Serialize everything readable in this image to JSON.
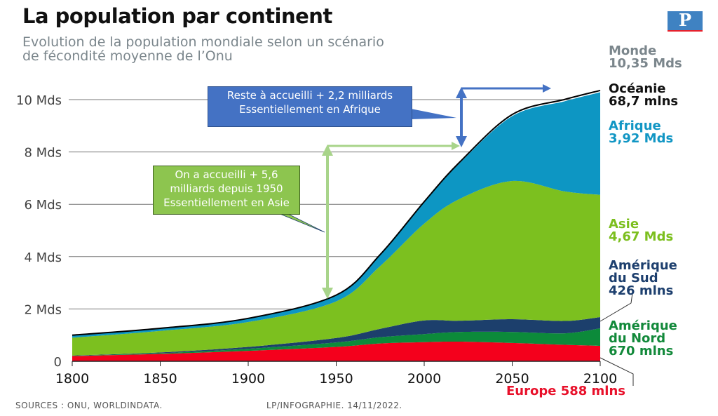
{
  "header": {
    "title": "La population par continent",
    "subtitle_line1": "Evolution de la population mondiale selon un scénario",
    "subtitle_line2": "de fécondité moyenne de l’Onu",
    "logo_letter": "P"
  },
  "labels": {
    "monde": {
      "name": "Monde",
      "value": "10,35 Mds",
      "color": "#7b868c"
    },
    "oceanie": {
      "name": "Océanie",
      "value": "68,7 mlns",
      "color": "#111111"
    },
    "afrique": {
      "name": "Afrique",
      "value": "3,92 Mds",
      "color": "#1196c4"
    },
    "asie": {
      "name": "Asie",
      "value": "4,67 Mds",
      "color": "#7cbf1e"
    },
    "amsud": {
      "name1": "Amérique",
      "name2": "du Sud",
      "value": "426 mlns",
      "color": "#1d3f6e"
    },
    "amnord": {
      "name1": "Amérique",
      "name2": "du Nord",
      "value": "670 mlns",
      "color": "#12893a"
    },
    "europe": {
      "text": "Europe 588 mlns",
      "color": "#e8102a"
    }
  },
  "annotations": {
    "africa_box": {
      "line1": "Reste à accueilli + 2,2 milliards",
      "line2": "Essentiellement en Afrique",
      "color": "#4472c4"
    },
    "asia_box": {
      "line1": "On a accueilli + 5,6",
      "line2": "milliards depuis 1950",
      "line3": "Essentiellement en Asie",
      "color": "#8dc54f"
    }
  },
  "footer": {
    "sources": "SOURCES : ONU, WORLDINDATA.",
    "credit": "LP/INFOGRAPHIE.  14/11/2022."
  },
  "chart_data": {
    "type": "area",
    "stacked": true,
    "title": "La population par continent",
    "xlabel": "",
    "ylabel": "",
    "x": [
      1800,
      1850,
      1900,
      1950,
      1975,
      2000,
      2020,
      2050,
      2080,
      2100
    ],
    "xticks": [
      1800,
      1850,
      1900,
      1950,
      2000,
      2050,
      2100
    ],
    "yticks": [
      0,
      2,
      4,
      6,
      8,
      10
    ],
    "ytick_labels": [
      "0",
      "2 Mds",
      "4 Mds",
      "6 Mds",
      "8 Mds",
      "10 Mds"
    ],
    "ylim": [
      0,
      10.6
    ],
    "xlim": [
      1800,
      2100
    ],
    "grid": true,
    "unit": "milliards",
    "series": [
      {
        "name": "Europe",
        "color": "#f4001c",
        "values": [
          0.2,
          0.28,
          0.4,
          0.55,
          0.68,
          0.73,
          0.75,
          0.7,
          0.63,
          0.59
        ]
      },
      {
        "name": "Amérique du Nord",
        "color": "#0c8a3a",
        "values": [
          0.01,
          0.03,
          0.08,
          0.17,
          0.24,
          0.31,
          0.37,
          0.42,
          0.44,
          0.67
        ]
      },
      {
        "name": "Amérique du Sud",
        "color": "#1c3f6c",
        "values": [
          0.01,
          0.03,
          0.07,
          0.17,
          0.32,
          0.52,
          0.43,
          0.49,
          0.47,
          0.43
        ]
      },
      {
        "name": "Asie",
        "color": "#7cc01f",
        "values": [
          0.68,
          0.82,
          0.95,
          1.4,
          2.4,
          3.7,
          4.65,
          5.28,
          4.95,
          4.67
        ]
      },
      {
        "name": "Afrique",
        "color": "#0d96c3",
        "values": [
          0.1,
          0.1,
          0.13,
          0.23,
          0.42,
          0.81,
          1.36,
          2.48,
          3.45,
          3.92
        ]
      },
      {
        "name": "Océanie",
        "color": "#000000",
        "values": [
          0.002,
          0.002,
          0.006,
          0.013,
          0.021,
          0.031,
          0.044,
          0.057,
          0.066,
          0.069
        ]
      }
    ],
    "total": {
      "name": "Monde",
      "values": [
        1.0,
        1.26,
        1.64,
        2.53,
        4.08,
        6.1,
        7.6,
        9.43,
        10.01,
        10.35
      ]
    }
  }
}
